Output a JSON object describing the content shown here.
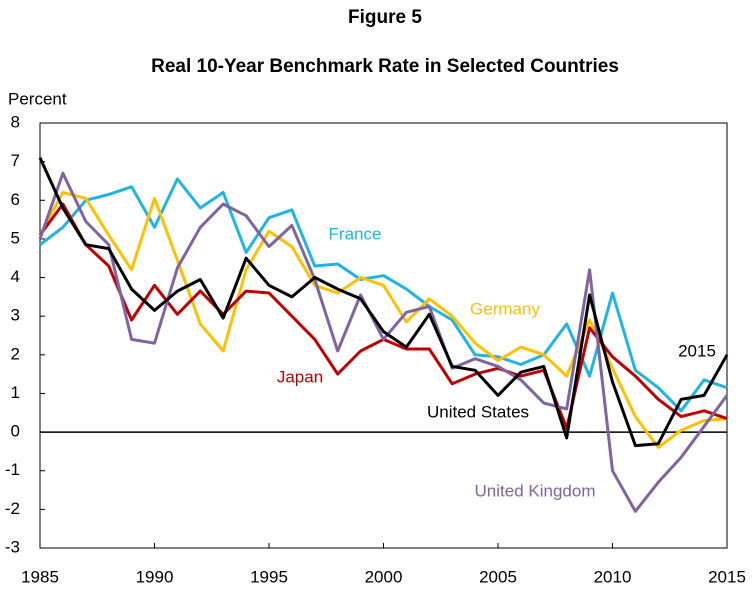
{
  "chart_data": {
    "type": "line",
    "title": "Figure 5",
    "subtitle": "Real 10-Year Benchmark Rate in Selected Countries",
    "y_label": "Percent",
    "x": [
      1985,
      1986,
      1987,
      1988,
      1989,
      1990,
      1991,
      1992,
      1993,
      1994,
      1995,
      1996,
      1997,
      1998,
      1999,
      2000,
      2001,
      2002,
      2003,
      2004,
      2005,
      2006,
      2007,
      2008,
      2009,
      2010,
      2011,
      2012,
      2013,
      2014,
      2015
    ],
    "series": [
      {
        "name": "France",
        "color": "#1fb4e4",
        "values": [
          4.85,
          5.3,
          6.0,
          6.15,
          6.35,
          5.3,
          6.55,
          5.8,
          6.2,
          4.65,
          5.55,
          5.75,
          4.3,
          4.35,
          3.95,
          4.05,
          3.7,
          3.25,
          2.9,
          2.0,
          1.95,
          1.75,
          2.0,
          2.8,
          1.45,
          3.6,
          1.6,
          1.15,
          0.55,
          1.35,
          1.15
        ]
      },
      {
        "name": "Germany",
        "color": "#ffc000",
        "values": [
          5.1,
          6.2,
          6.05,
          5.1,
          4.2,
          6.05,
          4.45,
          2.8,
          2.1,
          4.2,
          5.2,
          4.8,
          3.8,
          3.6,
          4.0,
          3.8,
          2.85,
          3.45,
          3.0,
          2.3,
          1.85,
          2.2,
          2.0,
          1.45,
          2.9,
          1.65,
          0.4,
          -0.4,
          0.05,
          0.3,
          0.35
        ]
      },
      {
        "name": "Japan",
        "color": "#c00000",
        "values": [
          5.1,
          5.9,
          4.85,
          4.3,
          2.9,
          3.8,
          3.05,
          3.65,
          3.05,
          3.65,
          3.6,
          3.0,
          2.4,
          1.5,
          2.1,
          2.4,
          2.15,
          2.15,
          1.25,
          1.5,
          1.65,
          1.45,
          1.6,
          0.1,
          2.7,
          1.95,
          1.45,
          0.85,
          0.4,
          0.55,
          0.35
        ]
      },
      {
        "name": "United Kingdom",
        "color": "#8064a2",
        "values": [
          5.0,
          6.7,
          5.45,
          4.85,
          2.4,
          2.3,
          4.25,
          5.3,
          5.9,
          5.6,
          4.8,
          5.35,
          3.95,
          2.1,
          3.55,
          2.4,
          3.1,
          3.25,
          1.65,
          1.9,
          1.7,
          1.35,
          0.75,
          0.6,
          4.2,
          -1.0,
          -2.05,
          -1.3,
          -0.65,
          0.15,
          0.95
        ]
      },
      {
        "name": "United States",
        "color": "#000000",
        "values": [
          7.1,
          5.8,
          4.85,
          4.75,
          3.7,
          3.15,
          3.65,
          3.95,
          2.95,
          4.5,
          3.8,
          3.5,
          4.0,
          3.7,
          3.45,
          2.6,
          2.2,
          3.05,
          1.7,
          1.6,
          0.95,
          1.55,
          1.7,
          -0.15,
          3.55,
          1.3,
          -0.35,
          -0.3,
          0.85,
          0.95,
          2.0
        ]
      }
    ],
    "annotations": [
      "2015"
    ],
    "xlim": [
      1985,
      2015
    ],
    "xticks": [
      1985,
      1990,
      1995,
      2000,
      2005,
      2010,
      2015
    ],
    "ylim": [
      -3,
      8
    ],
    "yticks": [
      -3,
      -2,
      -1,
      0,
      1,
      2,
      3,
      4,
      5,
      6,
      7,
      8
    ]
  }
}
